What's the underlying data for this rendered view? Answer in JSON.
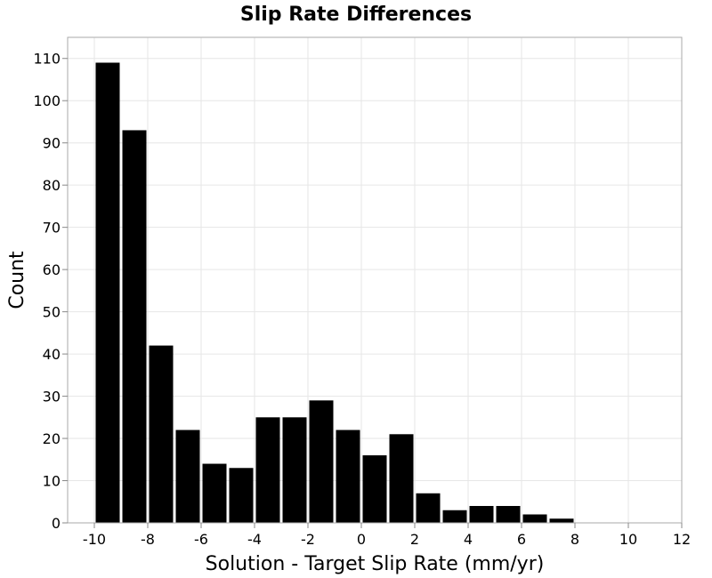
{
  "chart_data": {
    "type": "bar",
    "title": "Slip Rate Differences",
    "xlabel": "Solution - Target Slip Rate (mm/yr)",
    "ylabel": "Count",
    "xlim": [
      -11,
      12
    ],
    "ylim": [
      0,
      115
    ],
    "xticks": [
      -10,
      -8,
      -6,
      -4,
      -2,
      0,
      2,
      4,
      6,
      8,
      10,
      12
    ],
    "yticks": [
      0,
      10,
      20,
      30,
      40,
      50,
      60,
      70,
      80,
      90,
      100,
      110
    ],
    "bin_width": 1,
    "bin_starts": [
      -10,
      -9,
      -8,
      -7,
      -6,
      -5,
      -4,
      -3,
      -2,
      -1,
      0,
      1,
      2,
      3,
      4,
      5,
      6,
      7
    ],
    "values": [
      109,
      93,
      42,
      22,
      14,
      13,
      25,
      25,
      29,
      22,
      16,
      21,
      7,
      3,
      4,
      4,
      2,
      1
    ],
    "bar_color": "#000000",
    "grid": true
  }
}
